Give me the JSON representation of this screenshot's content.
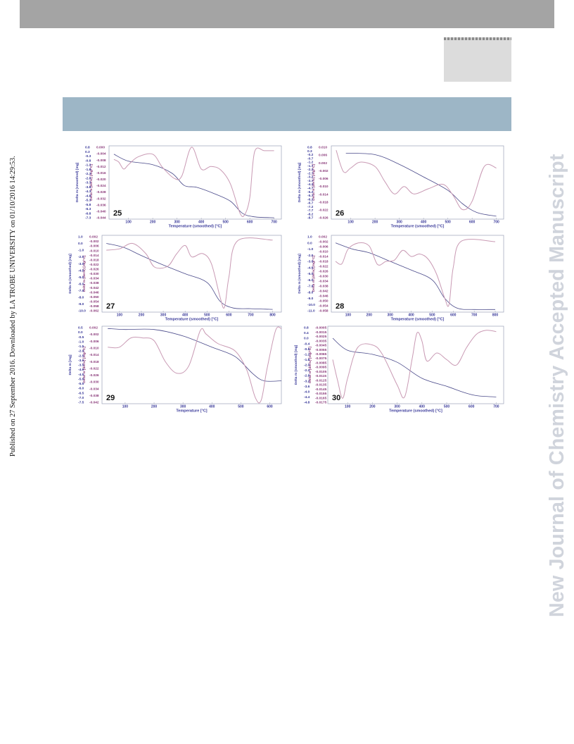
{
  "sidebar": {
    "published": "Published on 27 September 2016. Downloaded by LA TROBE UNIVERSITY on 01/10/2016 14:29:53.",
    "watermark": "New Journal of Chemistry Accepted Manuscript"
  },
  "chart_data": [
    {
      "type": "line",
      "panel": "25",
      "xlabel": "Temperature (smoothed) [°C]",
      "ylabel_left": "Delta m (smoothed) [mg]",
      "ylabel_right": "Delta m (deriv) [mg/°C]",
      "xticks": [
        "100",
        "200",
        "300",
        "400",
        "500",
        "600",
        "700"
      ],
      "yticks_left": [
        "0.8",
        "0.3",
        "-0.3",
        "-0.8",
        "-1.3",
        "-1.8",
        "-2.3",
        "-2.8",
        "-3.3",
        "-3.8",
        "-4.3",
        "-4.8",
        "-5.3",
        "-5.8",
        "-6.3",
        "-6.8",
        "-7.3"
      ],
      "yticks_right": [
        "0.000",
        "-0.004",
        "-0.008",
        "-0.012",
        "-0.016",
        "-0.020",
        "-0.024",
        "-0.028",
        "-0.032",
        "-0.036",
        "-0.040",
        "-0.044"
      ],
      "xlim": [
        20,
        730
      ],
      "series": [
        {
          "color": "#4a4a8a",
          "points": [
            [
              40,
              0.0
            ],
            [
              100,
              -0.8
            ],
            [
              200,
              -1.2
            ],
            [
              280,
              -2.2
            ],
            [
              330,
              -3.6
            ],
            [
              380,
              -3.8
            ],
            [
              450,
              -4.5
            ],
            [
              520,
              -5.4
            ],
            [
              570,
              -6.8
            ],
            [
              620,
              -7.2
            ],
            [
              700,
              -7.3
            ]
          ]
        },
        {
          "color": "#c99ab4",
          "points": [
            [
              40,
              -0.6
            ],
            [
              60,
              -0.9
            ],
            [
              80,
              -1.7
            ],
            [
              100,
              -1.2
            ],
            [
              140,
              -0.3
            ],
            [
              200,
              0.0
            ],
            [
              240,
              -1.5
            ],
            [
              290,
              -2.8
            ],
            [
              320,
              -2.5
            ],
            [
              360,
              0.8
            ],
            [
              400,
              -1.7
            ],
            [
              440,
              -1.4
            ],
            [
              480,
              -1.8
            ],
            [
              520,
              -3.4
            ],
            [
              560,
              -6.8
            ],
            [
              580,
              -6.9
            ],
            [
              600,
              -5.0
            ],
            [
              620,
              0.3
            ],
            [
              660,
              0.4
            ],
            [
              700,
              0.4
            ]
          ]
        }
      ]
    },
    {
      "type": "line",
      "panel": "26",
      "xlabel": "Temperature (smoothed) [°C]",
      "ylabel_left": "Delta m (smoothed) [mg]",
      "ylabel_right": "Delta m (deriv) [mg/°C]",
      "xticks": [
        "100",
        "200",
        "300",
        "400",
        "500",
        "600",
        "700"
      ],
      "yticks_left": [
        "0.8",
        "0.3",
        "-0.2",
        "-0.7",
        "-1.2",
        "-1.7",
        "-2.2",
        "-2.7",
        "-3.2",
        "-3.7",
        "-4.2",
        "-4.7",
        "-5.2",
        "-5.7",
        "-6.2",
        "-6.7",
        "-7.2",
        "-7.7",
        "-8.2",
        "-8.7"
      ],
      "yticks_right": [
        "0.010",
        "0.006",
        "0.002",
        "-0.002",
        "-0.006",
        "-0.010",
        "-0.014",
        "-0.018",
        "-0.022",
        "-0.026"
      ],
      "xlim": [
        20,
        730
      ],
      "series": [
        {
          "color": "#4a4a8a",
          "points": [
            [
              80,
              0.0
            ],
            [
              200,
              -0.2
            ],
            [
              300,
              -1.5
            ],
            [
              400,
              -3.2
            ],
            [
              500,
              -5.0
            ],
            [
              560,
              -6.8
            ],
            [
              620,
              -8.0
            ],
            [
              700,
              -8.5
            ]
          ]
        },
        {
          "color": "#c99ab4",
          "points": [
            [
              40,
              0.4
            ],
            [
              70,
              -2.5
            ],
            [
              100,
              -2.0
            ],
            [
              140,
              -1.2
            ],
            [
              200,
              -1.8
            ],
            [
              240,
              -3.8
            ],
            [
              280,
              -5.5
            ],
            [
              320,
              -4.5
            ],
            [
              360,
              -5.5
            ],
            [
              420,
              -4.8
            ],
            [
              480,
              -4.2
            ],
            [
              520,
              -5.6
            ],
            [
              560,
              -7.6
            ],
            [
              600,
              -6.5
            ],
            [
              650,
              -1.8
            ],
            [
              700,
              -2.0
            ]
          ]
        }
      ]
    },
    {
      "type": "line",
      "panel": "27",
      "xlabel": "Temperature (smoothed) [°C]",
      "ylabel_left": "Delta m (smoothed) [mg]",
      "ylabel_right": "Delta m (deriv) [mg/°C]",
      "xticks": [
        "100",
        "200",
        "300",
        "400",
        "500",
        "600",
        "700",
        "800"
      ],
      "yticks_left": [
        "1.0",
        "0.0",
        "-1.0",
        "-2.0",
        "-3.0",
        "-4.0",
        "-5.0",
        "-6.0",
        "-7.0",
        "-8.0",
        "-9.0",
        "-10.0"
      ],
      "yticks_right": [
        "0.002",
        "-0.002",
        "-0.006",
        "-0.010",
        "-0.014",
        "-0.018",
        "-0.022",
        "-0.026",
        "-0.030",
        "-0.034",
        "-0.038",
        "-0.042",
        "-0.046",
        "-0.050",
        "-0.054",
        "-0.058",
        "-0.062"
      ],
      "xlim": [
        20,
        840
      ],
      "series": [
        {
          "color": "#4a4a8a",
          "points": [
            [
              40,
              0.0
            ],
            [
              120,
              -0.6
            ],
            [
              200,
              -1.8
            ],
            [
              300,
              -3.2
            ],
            [
              400,
              -4.5
            ],
            [
              500,
              -5.8
            ],
            [
              560,
              -8.6
            ],
            [
              620,
              -9.6
            ],
            [
              700,
              -9.7
            ],
            [
              800,
              -9.8
            ]
          ]
        },
        {
          "color": "#c99ab4",
          "points": [
            [
              40,
              -1.0
            ],
            [
              100,
              -0.8
            ],
            [
              160,
              0.0
            ],
            [
              220,
              -1.5
            ],
            [
              260,
              -3.5
            ],
            [
              320,
              -3.4
            ],
            [
              360,
              -1.6
            ],
            [
              400,
              -0.3
            ],
            [
              430,
              -2.0
            ],
            [
              480,
              -1.5
            ],
            [
              520,
              -3.0
            ],
            [
              560,
              -8.0
            ],
            [
              580,
              -9.5
            ],
            [
              600,
              -5.0
            ],
            [
              640,
              0.4
            ],
            [
              800,
              0.5
            ]
          ]
        }
      ]
    },
    {
      "type": "line",
      "panel": "28",
      "xlabel": "Temperature (smoothed) [°C]",
      "ylabel_left": "Delta m (smoothed) [mg]",
      "ylabel_right": "Delta m (deriv) [mg/°C]",
      "xticks": [
        "100",
        "200",
        "300",
        "400",
        "500",
        "600",
        "700",
        "800"
      ],
      "yticks_left": [
        "1.0",
        "0.0",
        "-1.0",
        "-2.0",
        "-3.0",
        "-4.0",
        "-5.0",
        "-6.0",
        "-7.0",
        "-8.0",
        "-9.0",
        "-10.0",
        "-11.0"
      ],
      "yticks_right": [
        "0.002",
        "-0.002",
        "-0.006",
        "-0.010",
        "-0.014",
        "-0.018",
        "-0.022",
        "-0.026",
        "-0.030",
        "-0.034",
        "-0.038",
        "-0.042",
        "-0.046",
        "-0.050",
        "-0.054",
        "-0.058"
      ],
      "xlim": [
        20,
        840
      ],
      "series": [
        {
          "color": "#4a4a8a",
          "points": [
            [
              40,
              0.0
            ],
            [
              120,
              -1.0
            ],
            [
              200,
              -1.6
            ],
            [
              300,
              -3.0
            ],
            [
              400,
              -4.4
            ],
            [
              500,
              -6.0
            ],
            [
              560,
              -9.0
            ],
            [
              620,
              -10.6
            ],
            [
              700,
              -10.8
            ],
            [
              800,
              -10.8
            ]
          ]
        },
        {
          "color": "#c99ab4",
          "points": [
            [
              40,
              -3.0
            ],
            [
              70,
              -3.4
            ],
            [
              100,
              -1.0
            ],
            [
              150,
              0.0
            ],
            [
              200,
              -0.5
            ],
            [
              240,
              -3.5
            ],
            [
              280,
              -3.0
            ],
            [
              320,
              -2.8
            ],
            [
              360,
              -1.2
            ],
            [
              400,
              -2.2
            ],
            [
              440,
              -1.8
            ],
            [
              480,
              -2.6
            ],
            [
              520,
              -5.0
            ],
            [
              560,
              -9.0
            ],
            [
              580,
              -10.0
            ],
            [
              600,
              -4.0
            ],
            [
              640,
              0.3
            ],
            [
              800,
              0.2
            ]
          ]
        }
      ]
    },
    {
      "type": "line",
      "panel": "29",
      "xlabel": "Temperature [°C]",
      "ylabel_left": "Delta m [mg]",
      "ylabel_right": "Delta m (deriv) [mg/°C]",
      "xticks": [
        "100",
        "200",
        "300",
        "400",
        "500",
        "600"
      ],
      "yticks_left": [
        "0.5",
        "0.0",
        "-0.5",
        "-1.0",
        "-1.5",
        "-2.0",
        "-2.5",
        "-3.0",
        "-3.5",
        "-4.0",
        "-4.5",
        "-5.0",
        "-5.5",
        "-6.0",
        "-6.5",
        "-7.0",
        "-7.5"
      ],
      "yticks_right": [
        "0.002",
        "-0.002",
        "-0.006",
        "-0.010",
        "-0.014",
        "-0.018",
        "-0.022",
        "-0.026",
        "-0.030",
        "-0.034",
        "-0.038",
        "-0.042"
      ],
      "xlim": [
        20,
        640
      ],
      "series": [
        {
          "color": "#4a4a8a",
          "points": [
            [
              40,
              0.4
            ],
            [
              100,
              0.3
            ],
            [
              200,
              0.3
            ],
            [
              300,
              -0.4
            ],
            [
              400,
              -1.6
            ],
            [
              480,
              -2.6
            ],
            [
              540,
              -4.4
            ],
            [
              580,
              -5.2
            ],
            [
              640,
              -5.2
            ]
          ]
        },
        {
          "color": "#c99ab4",
          "points": [
            [
              40,
              -1.6
            ],
            [
              80,
              -1.6
            ],
            [
              120,
              -0.6
            ],
            [
              160,
              -0.6
            ],
            [
              200,
              -0.9
            ],
            [
              240,
              -3.2
            ],
            [
              280,
              -4.4
            ],
            [
              320,
              -3.6
            ],
            [
              360,
              0.2
            ],
            [
              380,
              -0.2
            ],
            [
              420,
              -1.2
            ],
            [
              480,
              -2.0
            ],
            [
              520,
              -4.0
            ],
            [
              550,
              -7.0
            ],
            [
              570,
              -7.3
            ],
            [
              590,
              -4.0
            ],
            [
              620,
              0.2
            ],
            [
              640,
              0.4
            ]
          ]
        }
      ]
    },
    {
      "type": "line",
      "panel": "30",
      "xlabel": "Temperature (smoothed) [°C]",
      "ylabel_left": "Delta m (smoothed) [mg]",
      "ylabel_right": "Delta m (deriv) [mg/°C]",
      "xticks": [
        "100",
        "200",
        "300",
        "400",
        "500",
        "600",
        "700"
      ],
      "yticks_left": [
        "0.8",
        "0.4",
        "0.0",
        "-0.4",
        "-0.8",
        "-1.2",
        "-1.6",
        "-2.0",
        "-2.4",
        "-2.8",
        "-3.2",
        "-3.6",
        "-4.0",
        "-4.4",
        "-4.8"
      ],
      "yticks_right": [
        "-0.0005",
        "-0.0015",
        "-0.0025",
        "-0.0035",
        "-0.0045",
        "-0.0055",
        "-0.0065",
        "-0.0075",
        "-0.0085",
        "-0.0095",
        "-0.0105",
        "-0.0115",
        "-0.0125",
        "-0.0135",
        "-0.0145",
        "-0.0155",
        "-0.0165",
        "-0.0175"
      ],
      "xlim": [
        20,
        730
      ],
      "series": [
        {
          "color": "#4a4a8a",
          "points": [
            [
              40,
              0.0
            ],
            [
              100,
              -0.9
            ],
            [
              200,
              -1.2
            ],
            [
              300,
              -1.8
            ],
            [
              400,
              -3.0
            ],
            [
              500,
              -3.6
            ],
            [
              560,
              -4.0
            ],
            [
              620,
              -4.3
            ],
            [
              700,
              -4.4
            ]
          ]
        },
        {
          "color": "#c99ab4",
          "points": [
            [
              40,
              -1.6
            ],
            [
              60,
              -3.2
            ],
            [
              80,
              -4.5
            ],
            [
              100,
              -3.0
            ],
            [
              140,
              -0.7
            ],
            [
              200,
              -0.5
            ],
            [
              240,
              -1.2
            ],
            [
              300,
              -3.5
            ],
            [
              330,
              -4.4
            ],
            [
              360,
              -1.6
            ],
            [
              380,
              0.4
            ],
            [
              400,
              -0.2
            ],
            [
              420,
              -1.7
            ],
            [
              460,
              -1.1
            ],
            [
              500,
              -1.6
            ],
            [
              540,
              -2.0
            ],
            [
              580,
              -0.7
            ],
            [
              620,
              0.3
            ],
            [
              660,
              0.6
            ],
            [
              700,
              0.5
            ]
          ]
        }
      ]
    }
  ]
}
